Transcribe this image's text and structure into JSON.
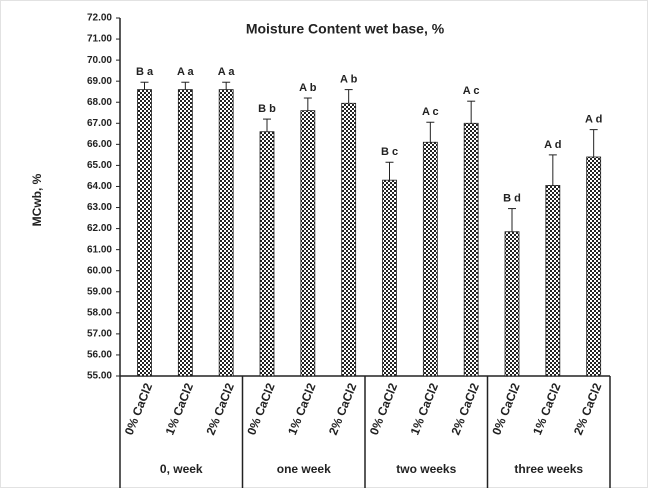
{
  "chart_data": {
    "type": "bar",
    "title": "Moisture Content wet base, %",
    "y_label": "MCwb, %",
    "categories": [
      "0% CaCl2",
      "1% CaCl2",
      "2% CaCl2",
      "0% CaCl2",
      "1% CaCl2",
      "2% CaCl2",
      "0% CaCl2",
      "1% CaCl2",
      "2% CaCl2",
      "0% CaCl2",
      "1% CaCl2",
      "2% CaCl2"
    ],
    "groups": [
      "0, week",
      "one week",
      "two weeks",
      "three weeks"
    ],
    "series": [
      {
        "color": "#222222",
        "values": [
          68.6,
          68.6,
          68.6,
          66.6,
          67.6,
          67.95,
          64.3,
          66.1,
          67.0,
          61.85,
          64.05,
          65.4
        ],
        "errors": [
          0.35,
          0.35,
          0.35,
          0.6,
          0.6,
          0.65,
          0.85,
          0.95,
          1.05,
          1.1,
          1.45,
          1.3
        ],
        "annotations": [
          "B a",
          "A a",
          "A a",
          "B b",
          "A b",
          "A b",
          "B c",
          "A c",
          "A c",
          "B d",
          "A d",
          "A d"
        ]
      }
    ],
    "ylim": [
      55,
      72
    ],
    "yticks": [
      {
        "value": 55,
        "label": "55.00"
      },
      {
        "value": 56,
        "label": "56.00"
      },
      {
        "value": 57,
        "label": "57.00"
      },
      {
        "value": 58,
        "label": "58.00"
      },
      {
        "value": 59,
        "label": "59.00"
      },
      {
        "value": 60,
        "label": "60.00"
      },
      {
        "value": 61,
        "label": "61.00"
      },
      {
        "value": 62,
        "label": "62.00"
      },
      {
        "value": 63,
        "label": "63.00"
      },
      {
        "value": 64,
        "label": "64.00"
      },
      {
        "value": 65,
        "label": "65.00"
      },
      {
        "value": 66,
        "label": "66.00"
      },
      {
        "value": 67,
        "label": "67.00"
      },
      {
        "value": 68,
        "label": "68.00"
      },
      {
        "value": 69,
        "label": "69.00"
      },
      {
        "value": 70,
        "label": "70.00"
      },
      {
        "value": 71,
        "label": "71.00"
      },
      {
        "value": 72,
        "label": "72.00"
      }
    ]
  }
}
